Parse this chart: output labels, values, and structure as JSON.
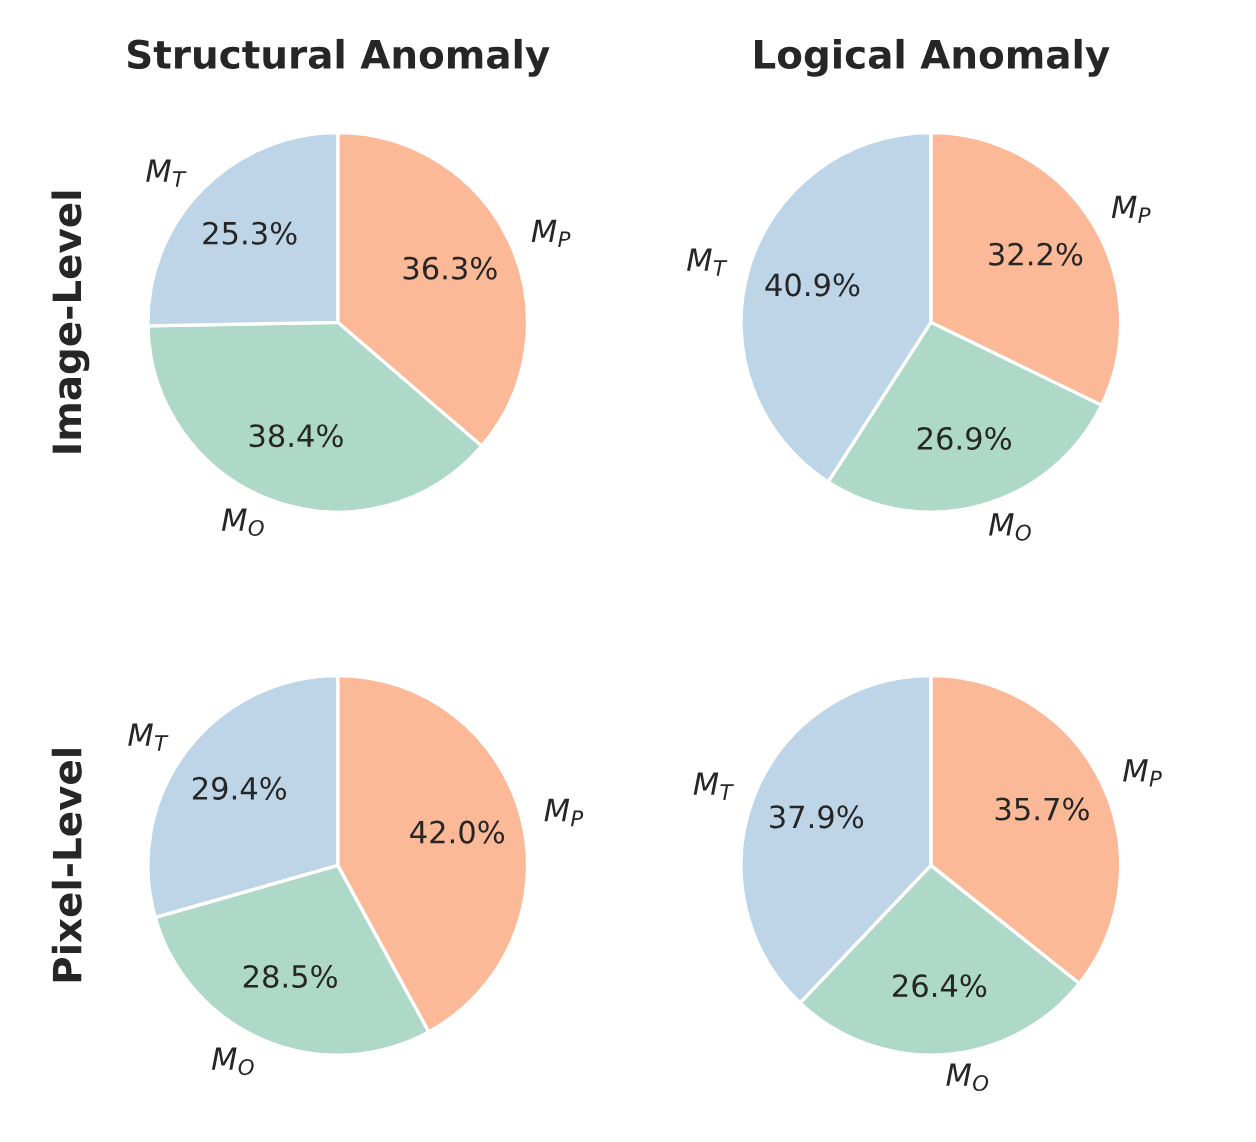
{
  "chart_data": [
    {
      "type": "pie",
      "title": "Structural Anomaly",
      "ylabel": "Image-Level",
      "categories": [
        "M$_{P}$",
        "M$_{O}$",
        "M$_{T}$"
      ],
      "values": [
        36.3,
        38.4,
        25.3
      ],
      "value_labels": [
        "36.3%",
        "38.4%",
        "25.3%"
      ],
      "colors": [
        "#fcb997",
        "#aed8c7",
        "#bed5e8"
      ]
    },
    {
      "type": "pie",
      "title": "Logical Anomaly",
      "categories": [
        "M$_{P}$",
        "M$_{O}$",
        "M$_{T}$"
      ],
      "values": [
        32.2,
        26.9,
        40.9
      ],
      "value_labels": [
        "32.2%",
        "26.9%",
        "40.9%"
      ],
      "colors": [
        "#fcb997",
        "#aed8c7",
        "#bed5e8"
      ]
    },
    {
      "type": "pie",
      "ylabel": "Pixel-Level",
      "categories": [
        "M$_{P}$",
        "M$_{O}$",
        "M$_{T}$"
      ],
      "values": [
        42.0,
        28.5,
        29.4
      ],
      "value_labels": [
        "42.0%",
        "28.5%",
        "29.4%"
      ],
      "colors": [
        "#fcb997",
        "#aed8c7",
        "#bed5e8"
      ]
    },
    {
      "type": "pie",
      "categories": [
        "M$_{P}$",
        "M$_{O}$",
        "M$_{T}$"
      ],
      "values": [
        35.7,
        26.4,
        37.9
      ],
      "value_labels": [
        "35.7%",
        "26.4%",
        "37.9%"
      ],
      "colors": [
        "#fcb997",
        "#aed8c7",
        "#bed5e8"
      ]
    }
  ]
}
